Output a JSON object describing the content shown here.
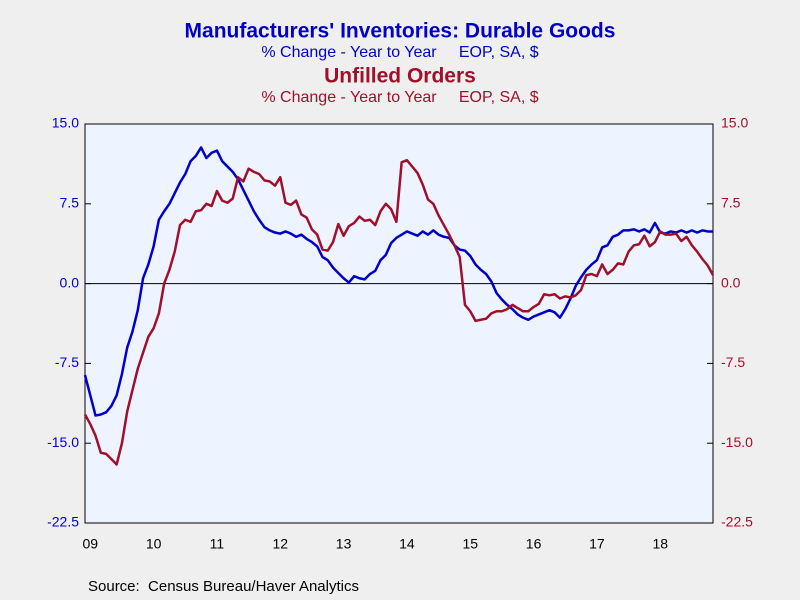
{
  "chart_data": {
    "type": "line",
    "title": "Manufacturers' Inventories: Durable Goods",
    "subtitle": "% Change - Year to Year     EOP, SA, $",
    "title2": "Unfilled Orders",
    "subtitle2": "% Change - Year to Year     EOP, SA, $",
    "source": "Source:  Census Bureau/Haver Analytics",
    "categories": [
      null,
      "09",
      null,
      null,
      null,
      null,
      null,
      null,
      null,
      null,
      null,
      null,
      null,
      "10",
      null,
      null,
      null,
      null,
      null,
      null,
      null,
      null,
      null,
      null,
      null,
      "11",
      null,
      null,
      null,
      null,
      null,
      null,
      null,
      null,
      null,
      null,
      null,
      "12",
      null,
      null,
      null,
      null,
      null,
      null,
      null,
      null,
      null,
      null,
      null,
      "13",
      null,
      null,
      null,
      null,
      null,
      null,
      null,
      null,
      null,
      null,
      null,
      "14",
      null,
      null,
      null,
      null,
      null,
      null,
      null,
      null,
      null,
      null,
      null,
      "15",
      null,
      null,
      null,
      null,
      null,
      null,
      null,
      null,
      null,
      null,
      null,
      "16",
      null,
      null,
      null,
      null,
      null,
      null,
      null,
      null,
      null,
      null,
      null,
      "17",
      null,
      null,
      null,
      null,
      null,
      null,
      null,
      null,
      null,
      null,
      null,
      "18",
      null,
      null,
      null,
      null,
      null,
      null,
      null,
      null,
      null,
      null
    ],
    "series": [
      {
        "name": "Manufacturers' Inventories: Durable Goods",
        "color": "#0000cc",
        "axis": "y",
        "values": [
          -8.6,
          -10.5,
          -12.4,
          -12.3,
          -12.1,
          -11.5,
          -10.5,
          -8.5,
          -6.0,
          -4.5,
          -2.5,
          0.5,
          1.8,
          3.5,
          6.0,
          6.8,
          7.5,
          8.5,
          9.5,
          10.3,
          11.5,
          12.0,
          12.8,
          11.8,
          12.3,
          12.5,
          11.5,
          11.0,
          10.5,
          9.8,
          8.8,
          7.8,
          6.8,
          6.0,
          5.3,
          5.0,
          4.8,
          4.7,
          4.9,
          4.7,
          4.4,
          4.6,
          4.2,
          3.9,
          3.5,
          2.5,
          2.2,
          1.5,
          1.0,
          0.5,
          0.1,
          0.7,
          0.5,
          0.4,
          0.9,
          1.2,
          2.2,
          2.7,
          3.8,
          4.3,
          4.6,
          4.9,
          4.7,
          4.5,
          4.9,
          4.6,
          5.0,
          4.6,
          4.4,
          4.3,
          3.6,
          3.2,
          3.1,
          2.6,
          1.8,
          1.3,
          0.9,
          0.2,
          -0.9,
          -1.5,
          -2.0,
          -2.4,
          -2.9,
          -3.2,
          -3.4,
          -3.1,
          -2.9,
          -2.7,
          -2.5,
          -2.7,
          -3.2,
          -2.4,
          -1.4,
          -0.2,
          0.6,
          1.3,
          1.8,
          2.2,
          3.4,
          3.6,
          4.4,
          4.6,
          5.0,
          5.0,
          5.1,
          4.9,
          5.1,
          4.8,
          5.7,
          4.8,
          4.7,
          4.9,
          4.8,
          5.0,
          4.8,
          5.0,
          4.8,
          5.0,
          4.9,
          4.9
        ]
      },
      {
        "name": "Unfilled Orders",
        "color": "#a0102a",
        "axis": "y2",
        "values": [
          -12.3,
          -13.2,
          -14.3,
          -15.9,
          -16.0,
          -16.5,
          -17.0,
          -15.0,
          -12.0,
          -10.0,
          -8.0,
          -6.5,
          -5.0,
          -4.2,
          -2.8,
          0.0,
          1.3,
          3.0,
          5.5,
          6.0,
          5.8,
          6.8,
          6.9,
          7.5,
          7.3,
          8.7,
          7.8,
          7.6,
          8.0,
          10.0,
          9.6,
          10.8,
          10.5,
          10.3,
          9.7,
          9.6,
          9.2,
          10.0,
          7.6,
          7.4,
          7.8,
          6.5,
          6.2,
          5.1,
          4.6,
          3.2,
          3.1,
          3.9,
          5.6,
          4.5,
          5.4,
          5.7,
          6.3,
          5.9,
          6.0,
          5.5,
          6.8,
          7.5,
          7.0,
          5.8,
          11.4,
          11.6,
          11.0,
          10.4,
          9.3,
          7.9,
          7.5,
          6.4,
          5.5,
          4.6,
          3.6,
          2.5,
          -2.0,
          -2.6,
          -3.5,
          -3.4,
          -3.3,
          -2.8,
          -2.6,
          -2.6,
          -2.4,
          -2.0,
          -2.3,
          -2.6,
          -2.6,
          -2.2,
          -1.9,
          -1.0,
          -1.1,
          -1.0,
          -1.4,
          -1.2,
          -1.3,
          -1.1,
          -0.6,
          0.8,
          0.9,
          0.7,
          1.8,
          0.9,
          1.3,
          1.9,
          1.8,
          3.0,
          3.6,
          3.7,
          4.5,
          3.5,
          3.9,
          4.9,
          4.6,
          4.6,
          4.7,
          4.0,
          4.4,
          3.6,
          3.0,
          2.3,
          1.7,
          0.8
        ]
      }
    ],
    "ylim": [
      -22.5,
      15
    ],
    "yticks": [
      {
        "value": 15,
        "label": "15.0"
      },
      7.5,
      {
        "value": 0,
        "label": "0.0"
      },
      -7.5,
      {
        "value": -15,
        "label": "-15.0"
      },
      -22.5
    ],
    "y2lim": [
      -22.5,
      15
    ],
    "y2ticks": [
      {
        "value": 15,
        "label": "15.0"
      },
      7.5,
      {
        "value": 0,
        "label": "0.0"
      },
      -7.5,
      {
        "value": -15,
        "label": "-15.0"
      },
      -22.5
    ],
    "zero_line": true
  }
}
